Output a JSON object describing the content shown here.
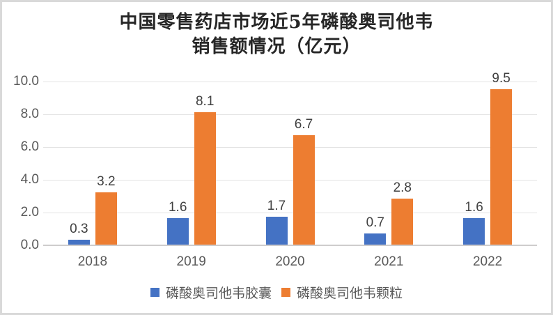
{
  "title": {
    "line1": "中国零售药店市场近5年磷酸奥司他韦",
    "line2": "销售额情况（亿元）"
  },
  "chart_data": {
    "type": "bar",
    "title": "中国零售药店市场近5年磷酸奥司他韦销售额情况（亿元）",
    "categories": [
      "2018",
      "2019",
      "2020",
      "2021",
      "2022"
    ],
    "series": [
      {
        "name": "磷酸奥司他韦胶囊",
        "color": "#4472C4",
        "values": [
          0.3,
          1.6,
          1.7,
          0.7,
          1.6
        ]
      },
      {
        "name": "磷酸奥司他韦颗粒",
        "color": "#ED7D31",
        "values": [
          3.2,
          8.1,
          6.7,
          2.8,
          9.5
        ]
      }
    ],
    "data_labels": [
      "0.3",
      "1.6",
      "1.7",
      "0.7",
      "1.6",
      "3.2",
      "8.1",
      "6.7",
      "2.8",
      "9.5"
    ],
    "ylim": [
      0,
      10
    ],
    "ytick_step": 2,
    "ytick_labels": [
      "0.0",
      "2.0",
      "4.0",
      "6.0",
      "8.0",
      "10.0"
    ],
    "grid": true,
    "legend_position": "bottom"
  },
  "colors": {
    "series_capsule": "#4472C4",
    "series_granule": "#ED7D31",
    "gridline": "#e3e3e3",
    "axis_line": "#cecccc",
    "tick_label": "#595959",
    "data_label": "#404040",
    "title_text": "#262626",
    "frame_border": "#d9d9d9",
    "background": "#ffffff"
  }
}
